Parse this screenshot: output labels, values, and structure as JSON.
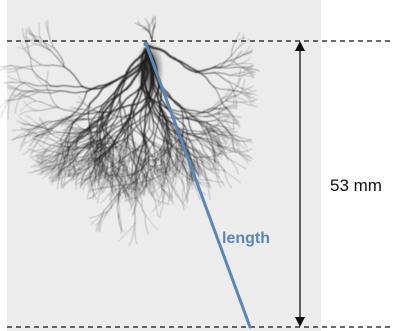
{
  "figure": {
    "dimension_label": "53 mm",
    "length_label": "length"
  },
  "colors": {
    "photo_background": "#ececec",
    "streamer": "#1c1c1c",
    "length_line": "#5b86b5",
    "dashed_line": "#111111",
    "arrow": "#111111"
  },
  "image_description_icon": "discharge-streamer-photo"
}
